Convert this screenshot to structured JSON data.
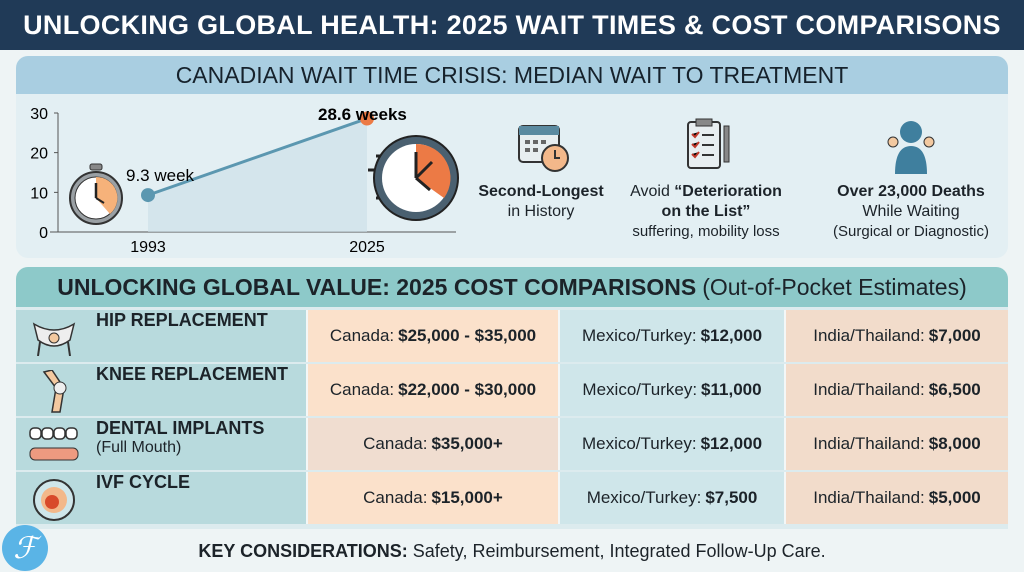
{
  "title": "UNLOCKING GLOBAL HEALTH: 2025 WAIT TIMES & COST COMPARISONS",
  "wait_section": {
    "heading": "CANADIAN WAIT TIME CRISIS: MEDIAN WAIT TO TREATMENT",
    "stats": [
      {
        "icon": "calendar-clock-icon",
        "bold": "Second-Longest",
        "line2": "in History",
        "line3": ""
      },
      {
        "icon": "clipboard-checklist-icon",
        "prefix": "Avoid ",
        "bold": "“Deterioration",
        "bold2": "on the List”",
        "line3": "suffering, mobility loss"
      },
      {
        "icon": "person-silhouette-icon",
        "bold": "Over 23,000 Deaths",
        "line2": "While Waiting",
        "line3": "(Surgical or Diagnostic)"
      }
    ]
  },
  "chart_data": {
    "type": "line",
    "categories": [
      "1993",
      "2025"
    ],
    "values": [
      9.3,
      28.6
    ],
    "data_labels": [
      "9.3 week",
      "28.6 weeks"
    ],
    "yticks": [
      "0",
      "10",
      "20",
      "30"
    ],
    "ylim": [
      0,
      30
    ],
    "colors": {
      "line": "#5b97b0",
      "start_point": "#5b97b0",
      "end_point": "#ec7a45"
    }
  },
  "cost_section": {
    "heading": "UNLOCKING GLOBAL VALUE: 2025 COST COMPARISONS",
    "subheading": "(Out-of-Pocket Estimates)",
    "rows": [
      {
        "icon": "pelvis-icon",
        "procedure": "HIP REPLACEMENT",
        "sub": "",
        "canada_label": "Canada:",
        "canada": "$25,000 - $35,000",
        "mexico_label": "Mexico/Turkey:",
        "mexico": "$12,000",
        "india_label": "India/Thailand:",
        "india": "$7,000"
      },
      {
        "icon": "knee-joint-icon",
        "procedure": "KNEE REPLACEMENT",
        "sub": "",
        "canada_label": "Canada:",
        "canada": "$22,000 - $30,000",
        "mexico_label": "Mexico/Turkey:",
        "mexico": "$11,000",
        "india_label": "India/Thailand:",
        "india": "$6,500"
      },
      {
        "icon": "dental-implant-icon",
        "procedure": "DENTAL IMPLANTS",
        "sub": "(Full Mouth)",
        "canada_label": "Canada:",
        "canada": "$35,000+",
        "mexico_label": "Mexico/Turkey:",
        "mexico": "$12,000",
        "india_label": "India/Thailand:",
        "india": "$8,000"
      },
      {
        "icon": "ivf-embryo-icon",
        "procedure": "IVF CYCLE",
        "sub": "",
        "canada_label": "Canada:",
        "canada": "$15,000+",
        "mexico_label": "Mexico/Turkey:",
        "mexico": "$7,500",
        "india_label": "India/Thailand:",
        "india": "$5,000"
      }
    ]
  },
  "footer": {
    "label": "KEY CONSIDERATIONS:",
    "text": "Safety, Reimbursement, Integrated Follow-Up Care."
  },
  "colors": {
    "title_bar": "#203a57",
    "wait_header": "#a9cee1",
    "cost_header": "#8dc9c9",
    "accent_orange": "#ec7a45"
  }
}
